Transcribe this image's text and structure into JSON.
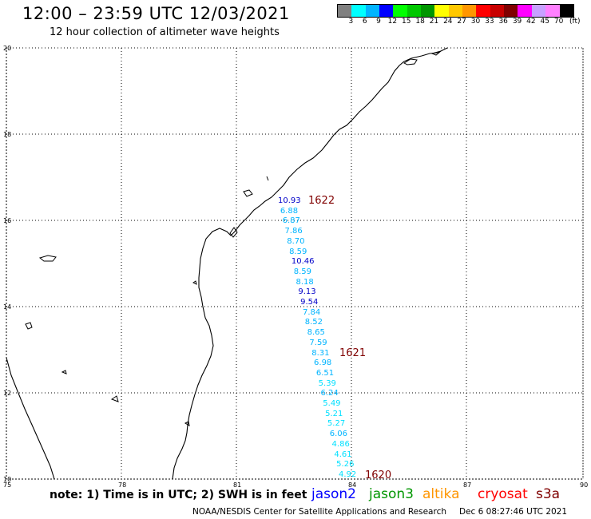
{
  "header": {
    "title": "12:00 – 23:59 UTC 12/03/2021",
    "subtitle": "12 hour collection of altimeter wave heights"
  },
  "legend": {
    "unit": "(ft)",
    "colors": [
      "#808080",
      "#00ffff",
      "#00b4ff",
      "#0000ff",
      "#00ff00",
      "#00c800",
      "#009600",
      "#ffff00",
      "#ffc800",
      "#ff9600",
      "#ff0000",
      "#c80000",
      "#800000",
      "#ff00ff",
      "#c8a0ff",
      "#ff80ff",
      "#000000"
    ],
    "labels": [
      "3",
      "6",
      "9",
      "12",
      "15",
      "18",
      "21",
      "24",
      "27",
      "30",
      "33",
      "36",
      "39",
      "42",
      "45",
      "70"
    ]
  },
  "map": {
    "lat_labels": [
      "20",
      "18",
      "16",
      "14",
      "12",
      "10"
    ],
    "lon_labels": [
      "75",
      "78",
      "81",
      "84",
      "87",
      "90"
    ],
    "measurements": [
      {
        "v": "10.93",
        "c": "#0000c8"
      },
      {
        "v": "6.88",
        "c": "#00b4ff"
      },
      {
        "v": "6.87",
        "c": "#00b4ff"
      },
      {
        "v": "7.86",
        "c": "#00b4ff"
      },
      {
        "v": "8.70",
        "c": "#00b4ff"
      },
      {
        "v": "8.59",
        "c": "#00b4ff"
      },
      {
        "v": "10.46",
        "c": "#0000c8"
      },
      {
        "v": "8.59",
        "c": "#00b4ff"
      },
      {
        "v": "8.18",
        "c": "#00b4ff"
      },
      {
        "v": "9.13",
        "c": "#0000c8"
      },
      {
        "v": "9.54",
        "c": "#0000c8"
      },
      {
        "v": "7.84",
        "c": "#00b4ff"
      },
      {
        "v": "8.52",
        "c": "#00b4ff"
      },
      {
        "v": "8.65",
        "c": "#00b4ff"
      },
      {
        "v": "7.59",
        "c": "#00b4ff"
      },
      {
        "v": "8.31",
        "c": "#00b4ff"
      },
      {
        "v": "6.98",
        "c": "#00b4ff"
      },
      {
        "v": "6.51",
        "c": "#00b4ff"
      },
      {
        "v": "5.39",
        "c": "#00e0ff"
      },
      {
        "v": "6.24",
        "c": "#00b4ff"
      },
      {
        "v": "5.49",
        "c": "#00e0ff"
      },
      {
        "v": "5.21",
        "c": "#00e0ff"
      },
      {
        "v": "5.27",
        "c": "#00e0ff"
      },
      {
        "v": "6.06",
        "c": "#00b4ff"
      },
      {
        "v": "4.86",
        "c": "#00e0ff"
      },
      {
        "v": "4.61",
        "c": "#00e0ff"
      },
      {
        "v": "5.26",
        "c": "#00e0ff"
      },
      {
        "v": "4.92",
        "c": "#00e0ff"
      }
    ],
    "pass_times": [
      "1622",
      "1621",
      "1620"
    ]
  },
  "footer": {
    "note": "note: 1) Time is in UTC; 2) SWH is in feet",
    "satellites": [
      {
        "name": "jason2",
        "color": "#0000ff"
      },
      {
        "name": "jason3",
        "color": "#009600"
      },
      {
        "name": "altika",
        "color": "#ff9600"
      },
      {
        "name": "cryosat",
        "color": "#ff0000"
      },
      {
        "name": "s3a",
        "color": "#800000"
      }
    ],
    "credit": "NOAA/NESDIS Center for Satellite Applications and Research",
    "timestamp": "Dec  6 08:27:46 UTC 2021"
  }
}
